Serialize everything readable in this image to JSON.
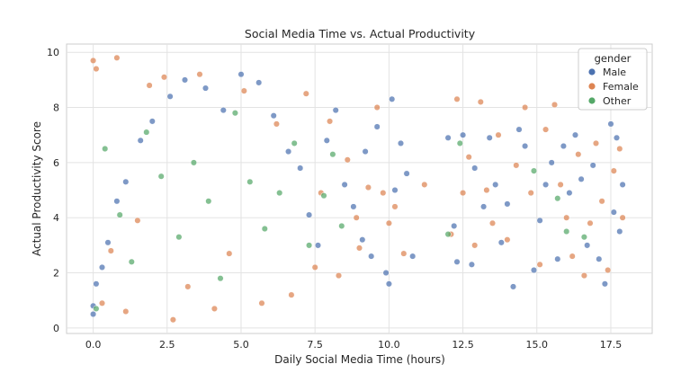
{
  "chart_data": {
    "type": "scatter",
    "title": "Social Media Time vs. Actual Productivity",
    "xlabel": "Daily Social Media Time (hours)",
    "ylabel": "Actual Productivity Score",
    "xlim": [
      -0.9,
      18.9
    ],
    "ylim": [
      -0.2,
      10.3
    ],
    "xticks": [
      0.0,
      2.5,
      5.0,
      7.5,
      10.0,
      12.5,
      15.0,
      17.5
    ],
    "xtick_labels": [
      "0.0",
      "2.5",
      "5.0",
      "7.5",
      "10.0",
      "12.5",
      "15.0",
      "17.5"
    ],
    "yticks": [
      0,
      2,
      4,
      6,
      8,
      10
    ],
    "ytick_labels": [
      "0",
      "2",
      "4",
      "6",
      "8",
      "10"
    ],
    "grid": true,
    "legend": {
      "title": "gender",
      "position": "top-right"
    },
    "series": [
      {
        "name": "Male",
        "color": "#4c72b0",
        "values": [
          [
            0.0,
            0.5
          ],
          [
            0.0,
            0.8
          ],
          [
            0.1,
            1.6
          ],
          [
            0.3,
            2.2
          ],
          [
            0.5,
            3.1
          ],
          [
            0.8,
            4.6
          ],
          [
            1.1,
            5.3
          ],
          [
            1.6,
            6.8
          ],
          [
            2.0,
            7.5
          ],
          [
            2.6,
            8.4
          ],
          [
            3.1,
            9.0
          ],
          [
            3.8,
            8.7
          ],
          [
            4.4,
            7.9
          ],
          [
            5.0,
            9.2
          ],
          [
            5.6,
            8.9
          ],
          [
            6.1,
            7.7
          ],
          [
            6.6,
            6.4
          ],
          [
            7.0,
            5.8
          ],
          [
            7.3,
            4.1
          ],
          [
            7.6,
            3.0
          ],
          [
            7.9,
            6.8
          ],
          [
            8.2,
            7.9
          ],
          [
            8.5,
            5.2
          ],
          [
            8.8,
            4.4
          ],
          [
            9.1,
            3.2
          ],
          [
            9.2,
            6.4
          ],
          [
            9.4,
            2.6
          ],
          [
            9.6,
            7.3
          ],
          [
            9.9,
            2.0
          ],
          [
            10.0,
            1.6
          ],
          [
            10.1,
            8.3
          ],
          [
            10.2,
            5.0
          ],
          [
            10.4,
            6.7
          ],
          [
            10.6,
            5.6
          ],
          [
            10.8,
            2.6
          ],
          [
            12.0,
            6.9
          ],
          [
            12.2,
            3.7
          ],
          [
            12.3,
            2.4
          ],
          [
            12.5,
            7.0
          ],
          [
            12.8,
            2.3
          ],
          [
            12.9,
            5.8
          ],
          [
            13.2,
            4.4
          ],
          [
            13.4,
            6.9
          ],
          [
            13.6,
            5.2
          ],
          [
            13.8,
            3.1
          ],
          [
            14.0,
            4.5
          ],
          [
            14.2,
            1.5
          ],
          [
            14.4,
            7.2
          ],
          [
            14.6,
            6.6
          ],
          [
            14.9,
            2.1
          ],
          [
            15.1,
            3.9
          ],
          [
            15.3,
            5.2
          ],
          [
            15.5,
            6.0
          ],
          [
            15.7,
            2.5
          ],
          [
            15.9,
            6.6
          ],
          [
            16.1,
            4.9
          ],
          [
            16.3,
            7.0
          ],
          [
            16.5,
            5.4
          ],
          [
            16.7,
            3.0
          ],
          [
            16.9,
            5.9
          ],
          [
            17.1,
            2.5
          ],
          [
            17.3,
            1.6
          ],
          [
            17.5,
            7.4
          ],
          [
            17.6,
            4.2
          ],
          [
            17.7,
            6.9
          ],
          [
            17.8,
            3.5
          ],
          [
            17.9,
            5.2
          ]
        ]
      },
      {
        "name": "Female",
        "color": "#dd8452",
        "values": [
          [
            0.0,
            9.7
          ],
          [
            0.1,
            9.4
          ],
          [
            0.3,
            0.9
          ],
          [
            0.6,
            2.8
          ],
          [
            0.8,
            9.8
          ],
          [
            1.1,
            0.6
          ],
          [
            1.5,
            3.9
          ],
          [
            1.9,
            8.8
          ],
          [
            2.4,
            9.1
          ],
          [
            2.7,
            0.3
          ],
          [
            3.2,
            1.5
          ],
          [
            3.6,
            9.2
          ],
          [
            4.1,
            0.7
          ],
          [
            4.6,
            2.7
          ],
          [
            5.1,
            8.6
          ],
          [
            5.7,
            0.9
          ],
          [
            6.2,
            7.4
          ],
          [
            6.7,
            1.2
          ],
          [
            7.2,
            8.5
          ],
          [
            7.5,
            2.2
          ],
          [
            7.7,
            4.9
          ],
          [
            8.0,
            7.5
          ],
          [
            8.3,
            1.9
          ],
          [
            8.6,
            6.1
          ],
          [
            8.9,
            4.0
          ],
          [
            9.0,
            2.9
          ],
          [
            9.3,
            5.1
          ],
          [
            9.6,
            8.0
          ],
          [
            9.8,
            4.9
          ],
          [
            10.0,
            3.8
          ],
          [
            10.2,
            4.4
          ],
          [
            10.5,
            2.7
          ],
          [
            11.2,
            5.2
          ],
          [
            12.1,
            3.4
          ],
          [
            12.3,
            8.3
          ],
          [
            12.5,
            4.9
          ],
          [
            12.7,
            6.2
          ],
          [
            12.9,
            3.0
          ],
          [
            13.1,
            8.2
          ],
          [
            13.3,
            5.0
          ],
          [
            13.5,
            3.8
          ],
          [
            13.7,
            7.0
          ],
          [
            14.0,
            3.2
          ],
          [
            14.3,
            5.9
          ],
          [
            14.6,
            8.0
          ],
          [
            14.8,
            4.9
          ],
          [
            15.1,
            2.3
          ],
          [
            15.3,
            7.2
          ],
          [
            15.6,
            8.1
          ],
          [
            15.8,
            5.2
          ],
          [
            16.0,
            4.0
          ],
          [
            16.2,
            2.6
          ],
          [
            16.4,
            6.3
          ],
          [
            16.6,
            1.9
          ],
          [
            16.8,
            3.8
          ],
          [
            17.0,
            6.7
          ],
          [
            17.2,
            4.6
          ],
          [
            17.4,
            2.1
          ],
          [
            17.6,
            5.7
          ],
          [
            17.8,
            6.5
          ],
          [
            17.9,
            4.0
          ]
        ]
      },
      {
        "name": "Other",
        "color": "#55a868",
        "values": [
          [
            0.1,
            0.7
          ],
          [
            0.4,
            6.5
          ],
          [
            0.9,
            4.1
          ],
          [
            1.3,
            2.4
          ],
          [
            1.8,
            7.1
          ],
          [
            2.3,
            5.5
          ],
          [
            2.9,
            3.3
          ],
          [
            3.4,
            6.0
          ],
          [
            3.9,
            4.6
          ],
          [
            4.3,
            1.8
          ],
          [
            4.8,
            7.8
          ],
          [
            5.3,
            5.3
          ],
          [
            5.8,
            3.6
          ],
          [
            6.3,
            4.9
          ],
          [
            6.8,
            6.7
          ],
          [
            7.3,
            3.0
          ],
          [
            7.8,
            4.8
          ],
          [
            8.1,
            6.3
          ],
          [
            8.4,
            3.7
          ],
          [
            12.0,
            3.4
          ],
          [
            12.4,
            6.7
          ],
          [
            14.9,
            5.7
          ],
          [
            15.7,
            4.7
          ],
          [
            16.0,
            3.5
          ],
          [
            16.6,
            3.3
          ]
        ]
      }
    ]
  }
}
